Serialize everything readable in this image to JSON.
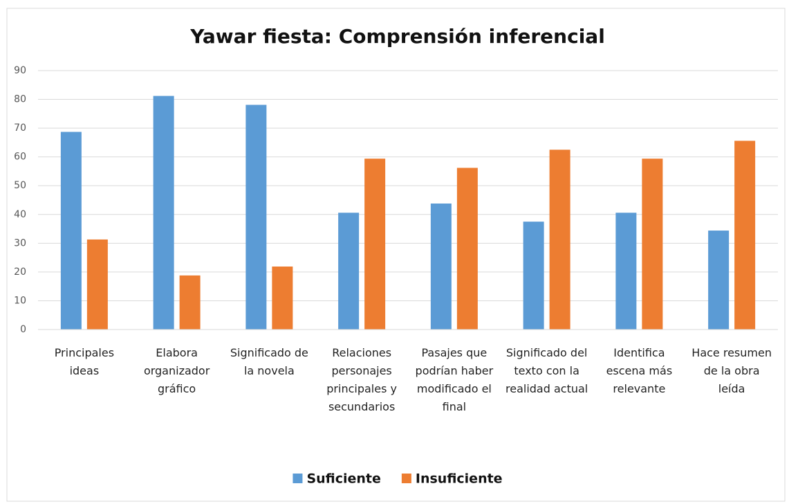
{
  "chart_data": {
    "type": "bar",
    "title": "Yawar fiesta: Comprensión inferencial",
    "categories": [
      "Principales ideas",
      "Elabora organizador gráfico",
      "Significado de la novela",
      "Relaciones personajes principales y secundarios",
      "Pasajes que podrían haber modificado el final",
      "Significado del texto con la realidad actual",
      "Identifica escena más relevante",
      "Hace resumen de la obra leída"
    ],
    "series": [
      {
        "name": "Suficiente",
        "color": "#5b9bd5",
        "values": [
          68.7,
          81.2,
          78.1,
          40.6,
          43.8,
          37.5,
          40.6,
          34.4
        ]
      },
      {
        "name": "Insuficiente",
        "color": "#ed7d31",
        "values": [
          31.3,
          18.8,
          21.9,
          59.4,
          56.2,
          62.5,
          59.4,
          65.6
        ]
      }
    ],
    "ylim": [
      0,
      90
    ],
    "yticks": [
      0,
      10,
      20,
      30,
      40,
      50,
      60,
      70,
      80,
      90
    ],
    "grid": true,
    "legend": "bottom"
  }
}
